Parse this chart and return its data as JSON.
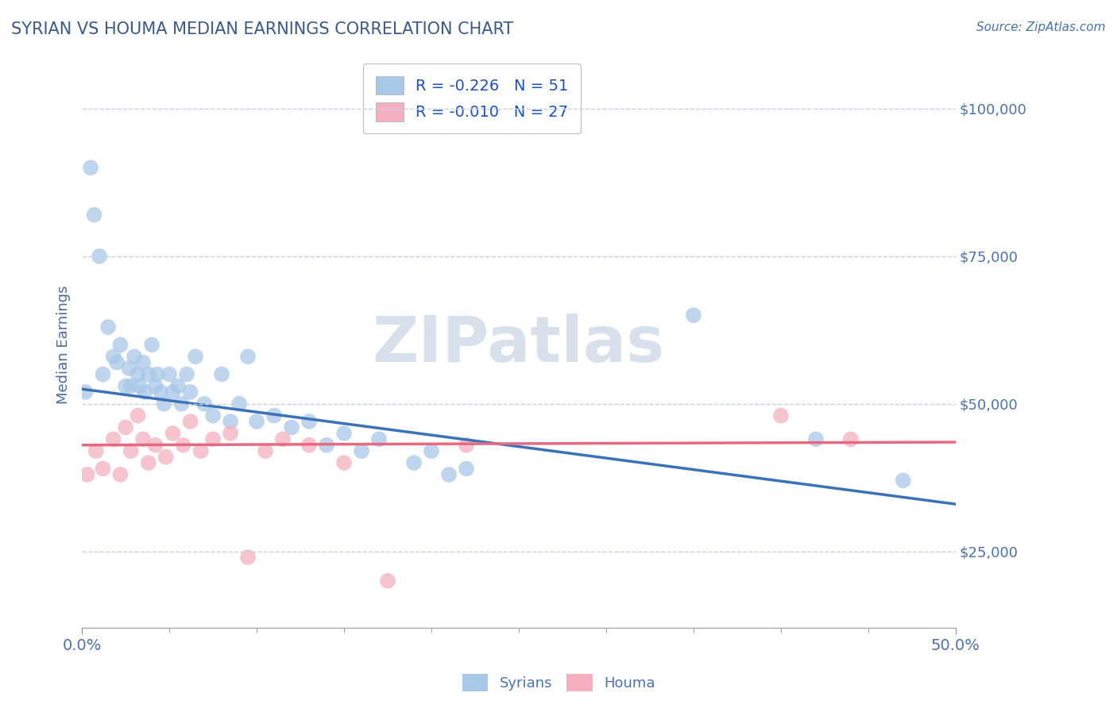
{
  "title": "SYRIAN VS HOUMA MEDIAN EARNINGS CORRELATION CHART",
  "source_text": "Source: ZipAtlas.com",
  "ylabel": "Median Earnings",
  "xmin": 0.0,
  "xmax": 0.5,
  "ymin": 12000,
  "ymax": 108000,
  "yticks": [
    25000,
    50000,
    75000,
    100000
  ],
  "ytick_labels": [
    "$25,000",
    "$50,000",
    "$75,000",
    "$100,000"
  ],
  "blue_R": -0.226,
  "blue_N": 51,
  "pink_R": -0.01,
  "pink_N": 27,
  "blue_color": "#a8c8e8",
  "pink_color": "#f4b0c0",
  "blue_line_color": "#3a72b8",
  "pink_line_color": "#e86880",
  "title_color": "#3a5a8a",
  "axis_label_color": "#4a6a9a",
  "tick_color": "#4a72b0",
  "legend_text_color": "#1a50c0",
  "grid_color": "#c8d0e0",
  "background_color": "#ffffff",
  "watermark_text": "ZIPatlas",
  "watermark_color": "#d8e0ec",
  "syrians_x": [
    0.002,
    0.005,
    0.007,
    0.01,
    0.012,
    0.015,
    0.018,
    0.02,
    0.022,
    0.025,
    0.027,
    0.028,
    0.03,
    0.032,
    0.033,
    0.035,
    0.036,
    0.038,
    0.04,
    0.042,
    0.043,
    0.045,
    0.047,
    0.05,
    0.052,
    0.055,
    0.057,
    0.06,
    0.062,
    0.065,
    0.07,
    0.075,
    0.08,
    0.085,
    0.09,
    0.095,
    0.1,
    0.11,
    0.12,
    0.13,
    0.14,
    0.15,
    0.16,
    0.17,
    0.19,
    0.2,
    0.21,
    0.22,
    0.35,
    0.42,
    0.47
  ],
  "syrians_y": [
    52000,
    90000,
    82000,
    75000,
    55000,
    63000,
    58000,
    57000,
    60000,
    53000,
    56000,
    53000,
    58000,
    55000,
    53000,
    57000,
    52000,
    55000,
    60000,
    53000,
    55000,
    52000,
    50000,
    55000,
    52000,
    53000,
    50000,
    55000,
    52000,
    58000,
    50000,
    48000,
    55000,
    47000,
    50000,
    58000,
    47000,
    48000,
    46000,
    47000,
    43000,
    45000,
    42000,
    44000,
    40000,
    42000,
    38000,
    39000,
    65000,
    44000,
    37000
  ],
  "houma_x": [
    0.003,
    0.008,
    0.012,
    0.018,
    0.022,
    0.025,
    0.028,
    0.032,
    0.035,
    0.038,
    0.042,
    0.048,
    0.052,
    0.058,
    0.062,
    0.068,
    0.075,
    0.085,
    0.095,
    0.105,
    0.115,
    0.13,
    0.15,
    0.175,
    0.22,
    0.4,
    0.44
  ],
  "houma_y": [
    38000,
    42000,
    39000,
    44000,
    38000,
    46000,
    42000,
    48000,
    44000,
    40000,
    43000,
    41000,
    45000,
    43000,
    47000,
    42000,
    44000,
    45000,
    24000,
    42000,
    44000,
    43000,
    40000,
    20000,
    43000,
    48000,
    44000
  ],
  "blue_line_x0": 0.0,
  "blue_line_y0": 52500,
  "blue_line_x1": 0.5,
  "blue_line_y1": 33000,
  "pink_line_x0": 0.0,
  "pink_line_y0": 43000,
  "pink_line_x1": 0.5,
  "pink_line_y1": 43500
}
